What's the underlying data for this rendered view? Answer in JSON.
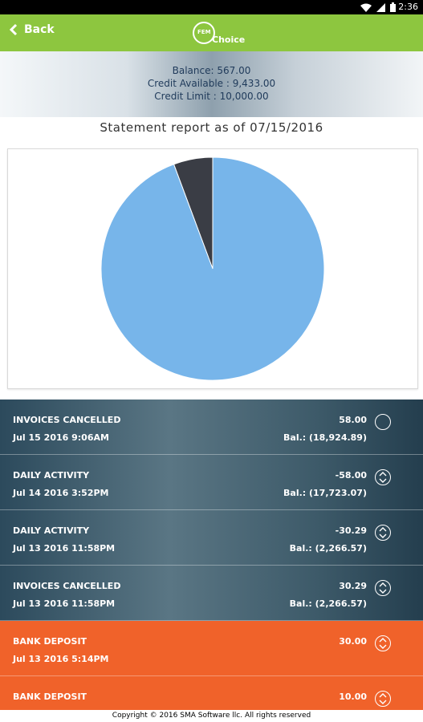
{
  "status_bar": {
    "time": "2:36",
    "icons": [
      "wifi-icon",
      "signal-icon",
      "battery-icon"
    ]
  },
  "app_bar": {
    "back_label": "Back",
    "logo_ring_text": "FEM",
    "logo_word": "Choice",
    "color": "#8dc63f"
  },
  "account": {
    "balance": "Balance: 567.00",
    "credit_available": "Credit Available : 9,433.00",
    "credit_limit": "Credit Limit : 10,000.00"
  },
  "report": {
    "title": "Statement report as of 07/15/2016"
  },
  "chart_data": {
    "type": "pie",
    "slices": [
      {
        "label": "Balance",
        "value": 567,
        "color": "#3a3d45"
      },
      {
        "label": "Credit Available",
        "value": 9433,
        "color": "#77b5ea"
      }
    ]
  },
  "transactions": [
    {
      "name": "INVOICES CANCELLED",
      "date": "Jul 15 2016 9:06AM",
      "amount": "58.00",
      "balance": "Bal.: (18,924.89)",
      "style": "teal",
      "toggle": "plain"
    },
    {
      "name": "DAILY ACTIVITY",
      "date": "Jul 14 2016 3:52PM",
      "amount": "-58.00",
      "balance": "Bal.: (17,723.07)",
      "style": "teal",
      "toggle": "arrows"
    },
    {
      "name": "DAILY ACTIVITY",
      "date": "Jul 13 2016 11:58PM",
      "amount": "-30.29",
      "balance": "Bal.: (2,266.57)",
      "style": "teal",
      "toggle": "arrows"
    },
    {
      "name": "INVOICES CANCELLED",
      "date": "Jul 13 2016 11:58PM",
      "amount": "30.29",
      "balance": "Bal.: (2,266.57)",
      "style": "teal",
      "toggle": "arrows"
    },
    {
      "name": "BANK DEPOSIT",
      "date": "Jul 13 2016 5:14PM",
      "amount": "30.00",
      "balance": "",
      "style": "orange",
      "toggle": "arrows"
    },
    {
      "name": "BANK DEPOSIT",
      "date": "",
      "amount": "10.00",
      "balance": "",
      "style": "orange",
      "toggle": "arrows"
    }
  ],
  "footer": {
    "copyright": "Copyright © 2016 SMA Software llc. All rights reserved"
  }
}
